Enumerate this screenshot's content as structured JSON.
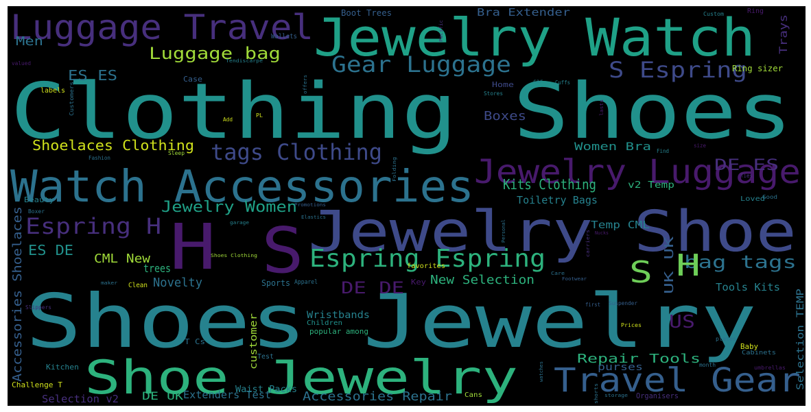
{
  "palette": {
    "background": "#000000",
    "dark_purple": "#481a6c",
    "purple": "#472f7d",
    "indigo": "#3e4a89",
    "blue": "#355f8d",
    "teal_blue": "#2c728e",
    "teal": "#26828e",
    "sea": "#21918c",
    "green_teal": "#1fa187",
    "green": "#2db27d",
    "bright_green": "#4ac16d",
    "lime": "#6ece58",
    "yellow_green": "#a0da39",
    "yellow": "#d0e11c"
  },
  "words": [
    "Clothing Shoes",
    "Shoes Jewelry",
    "Jewelry Watch",
    "Jewelry Shoe",
    "Watch Accessories",
    "Shoe Jewelry",
    "Luggage Travel",
    "H",
    "S",
    "Jewelry Luggage",
    "Travel Gear",
    "Espring Espring",
    "S Espring",
    "Gear Luggage",
    "tags Clothing",
    "Espring H",
    "Luggage bag",
    "Shoelaces Clothing",
    "Jewelry Women",
    "bag tags",
    "Kits Clothing",
    "S",
    "H",
    "DE DE",
    "US",
    "UK UK",
    "Repair Tools",
    "New Selection",
    "Accessories Repair",
    "DE ES",
    "ES ES",
    "ES DE",
    "CML New",
    "Men",
    "Novelty",
    "Accessories Shoelaces",
    "Boxes",
    "Women Bra",
    "Toiletry Bags",
    "Temp CML",
    "Tools Kits",
    "trees",
    "Wristbands",
    "DE UK",
    "Selection v2",
    "Extenders Test",
    "Bra Extender",
    "Boot Trees",
    "Trays",
    "Ring sizer",
    "v2 Temp",
    "customer",
    "Selection TEMP",
    "Challenge T",
    "purses",
    "Waist Packs",
    "Kitchen",
    "Beauty",
    "Home",
    "Case",
    "labels",
    "Sports",
    "Apparel",
    "Clean",
    "Key",
    "Children",
    "popular among",
    "T Cs",
    "Test",
    "Cans",
    "Baby",
    "Cabinets",
    "Organisers",
    "favorites",
    "Loved",
    "Good",
    "Ring",
    "Custom",
    "Wallets",
    "valued",
    "Fashion",
    "Sleep",
    "Add",
    "PL",
    "Boxer",
    "garage",
    "Elastics",
    "Promotions",
    "Shoes Clothing",
    "maker",
    "Slippers",
    "Prices",
    "Suspender",
    "first",
    "plates",
    "month",
    "storage",
    "shorts",
    "watches",
    "umbrellas",
    "Care",
    "Footwear",
    "carriers",
    "Ties",
    "Personal",
    "Find",
    "size",
    "offers",
    "Customers",
    "Stores",
    "Cuffs",
    "car",
    "Tendiscarpe",
    "Folding",
    "lasts",
    "Pacific",
    "Nucks"
  ]
}
